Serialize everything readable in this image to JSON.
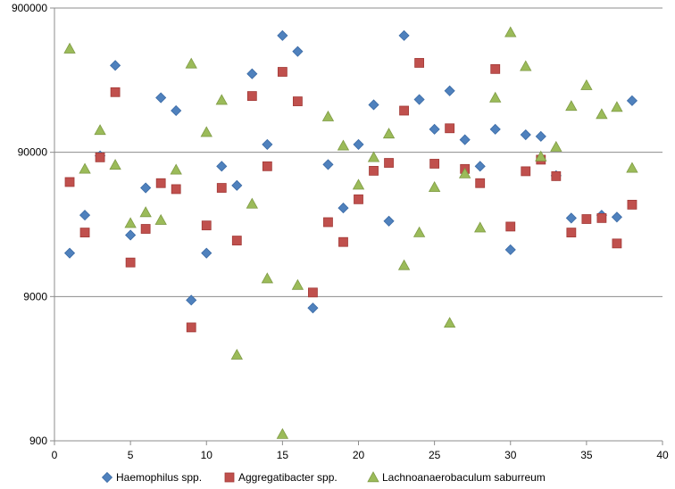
{
  "chart_data": {
    "type": "scatter",
    "title": "",
    "xlabel": "",
    "ylabel": "",
    "x_scale": "linear",
    "y_scale": "log",
    "xlim": [
      0,
      40
    ],
    "ylim": [
      900,
      900000
    ],
    "x_ticks": [
      "0",
      "5",
      "10",
      "15",
      "20",
      "25",
      "30",
      "35",
      "40"
    ],
    "y_ticks": [
      "900",
      "9000",
      "90000",
      "900000"
    ],
    "grid": "horizontal",
    "legend_position": "bottom",
    "series": [
      {
        "name": "Haemophilus spp.",
        "marker": "diamond",
        "color": "#4F81BD",
        "points": [
          [
            1,
            18000
          ],
          [
            2,
            33000
          ],
          [
            3,
            85000
          ],
          [
            4,
            360000
          ],
          [
            5,
            24000
          ],
          [
            6,
            51000
          ],
          [
            7,
            215000
          ],
          [
            8,
            175000
          ],
          [
            9,
            8500
          ],
          [
            10,
            18000
          ],
          [
            11,
            72000
          ],
          [
            12,
            53000
          ],
          [
            13,
            315000
          ],
          [
            14,
            102000
          ],
          [
            15,
            580000
          ],
          [
            16,
            450000
          ],
          [
            17,
            7500
          ],
          [
            18,
            74000
          ],
          [
            19,
            37000
          ],
          [
            20,
            102000
          ],
          [
            21,
            192000
          ],
          [
            22,
            30000
          ],
          [
            23,
            580000
          ],
          [
            24,
            209000
          ],
          [
            25,
            130000
          ],
          [
            26,
            240000
          ],
          [
            27,
            110000
          ],
          [
            28,
            72000
          ],
          [
            29,
            130000
          ],
          [
            30,
            19000
          ],
          [
            31,
            119000
          ],
          [
            32,
            116000
          ],
          [
            33,
            62000
          ],
          [
            34,
            31500
          ],
          [
            35,
            null
          ],
          [
            36,
            33000
          ],
          [
            37,
            32000
          ],
          [
            38,
            205000
          ]
        ]
      },
      {
        "name": "Aggregatibacter spp.",
        "marker": "square",
        "color": "#C0504D",
        "points": [
          [
            1,
            56000
          ],
          [
            2,
            25000
          ],
          [
            3,
            83000
          ],
          [
            4,
            235000
          ],
          [
            5,
            15500
          ],
          [
            6,
            26500
          ],
          [
            7,
            55000
          ],
          [
            8,
            50000
          ],
          [
            9,
            5500
          ],
          [
            10,
            28000
          ],
          [
            11,
            51000
          ],
          [
            12,
            22000
          ],
          [
            13,
            221000
          ],
          [
            14,
            72000
          ],
          [
            15,
            325000
          ],
          [
            16,
            203000
          ],
          [
            17,
            9600
          ],
          [
            18,
            29500
          ],
          [
            19,
            21500
          ],
          [
            20,
            42500
          ],
          [
            21,
            67000
          ],
          [
            22,
            76000
          ],
          [
            23,
            175000
          ],
          [
            24,
            375000
          ],
          [
            25,
            75000
          ],
          [
            26,
            132000
          ],
          [
            27,
            69000
          ],
          [
            28,
            55000
          ],
          [
            29,
            340000
          ],
          [
            30,
            27500
          ],
          [
            31,
            66500
          ],
          [
            32,
            80000
          ],
          [
            33,
            61500
          ],
          [
            34,
            25000
          ],
          [
            35,
            31000
          ],
          [
            36,
            31500
          ],
          [
            37,
            21000
          ],
          [
            38,
            39000
          ]
        ]
      },
      {
        "name": "Lachnoanaerobaculum saburreum",
        "marker": "triangle",
        "color": "#9BBB59",
        "points": [
          [
            1,
            470000
          ],
          [
            2,
            69000
          ],
          [
            3,
            128000
          ],
          [
            4,
            73500
          ],
          [
            5,
            29000
          ],
          [
            6,
            34500
          ],
          [
            7,
            30500
          ],
          [
            8,
            68000
          ],
          [
            9,
            370000
          ],
          [
            10,
            124000
          ],
          [
            11,
            207000
          ],
          [
            12,
            3550
          ],
          [
            13,
            39500
          ],
          [
            14,
            12000
          ],
          [
            15,
            1000
          ],
          [
            16,
            10800
          ],
          [
            17,
            null
          ],
          [
            18,
            159000
          ],
          [
            19,
            100000
          ],
          [
            20,
            53500
          ],
          [
            21,
            83000
          ],
          [
            22,
            121000
          ],
          [
            23,
            14800
          ],
          [
            24,
            25000
          ],
          [
            25,
            51500
          ],
          [
            26,
            5900
          ],
          [
            27,
            64000
          ],
          [
            28,
            27000
          ],
          [
            29,
            215000
          ],
          [
            30,
            610000
          ],
          [
            31,
            355000
          ],
          [
            32,
            84000
          ],
          [
            33,
            98000
          ],
          [
            34,
            188000
          ],
          [
            35,
            262000
          ],
          [
            36,
            165000
          ],
          [
            37,
            185000
          ],
          [
            38,
            70000
          ]
        ]
      }
    ]
  }
}
